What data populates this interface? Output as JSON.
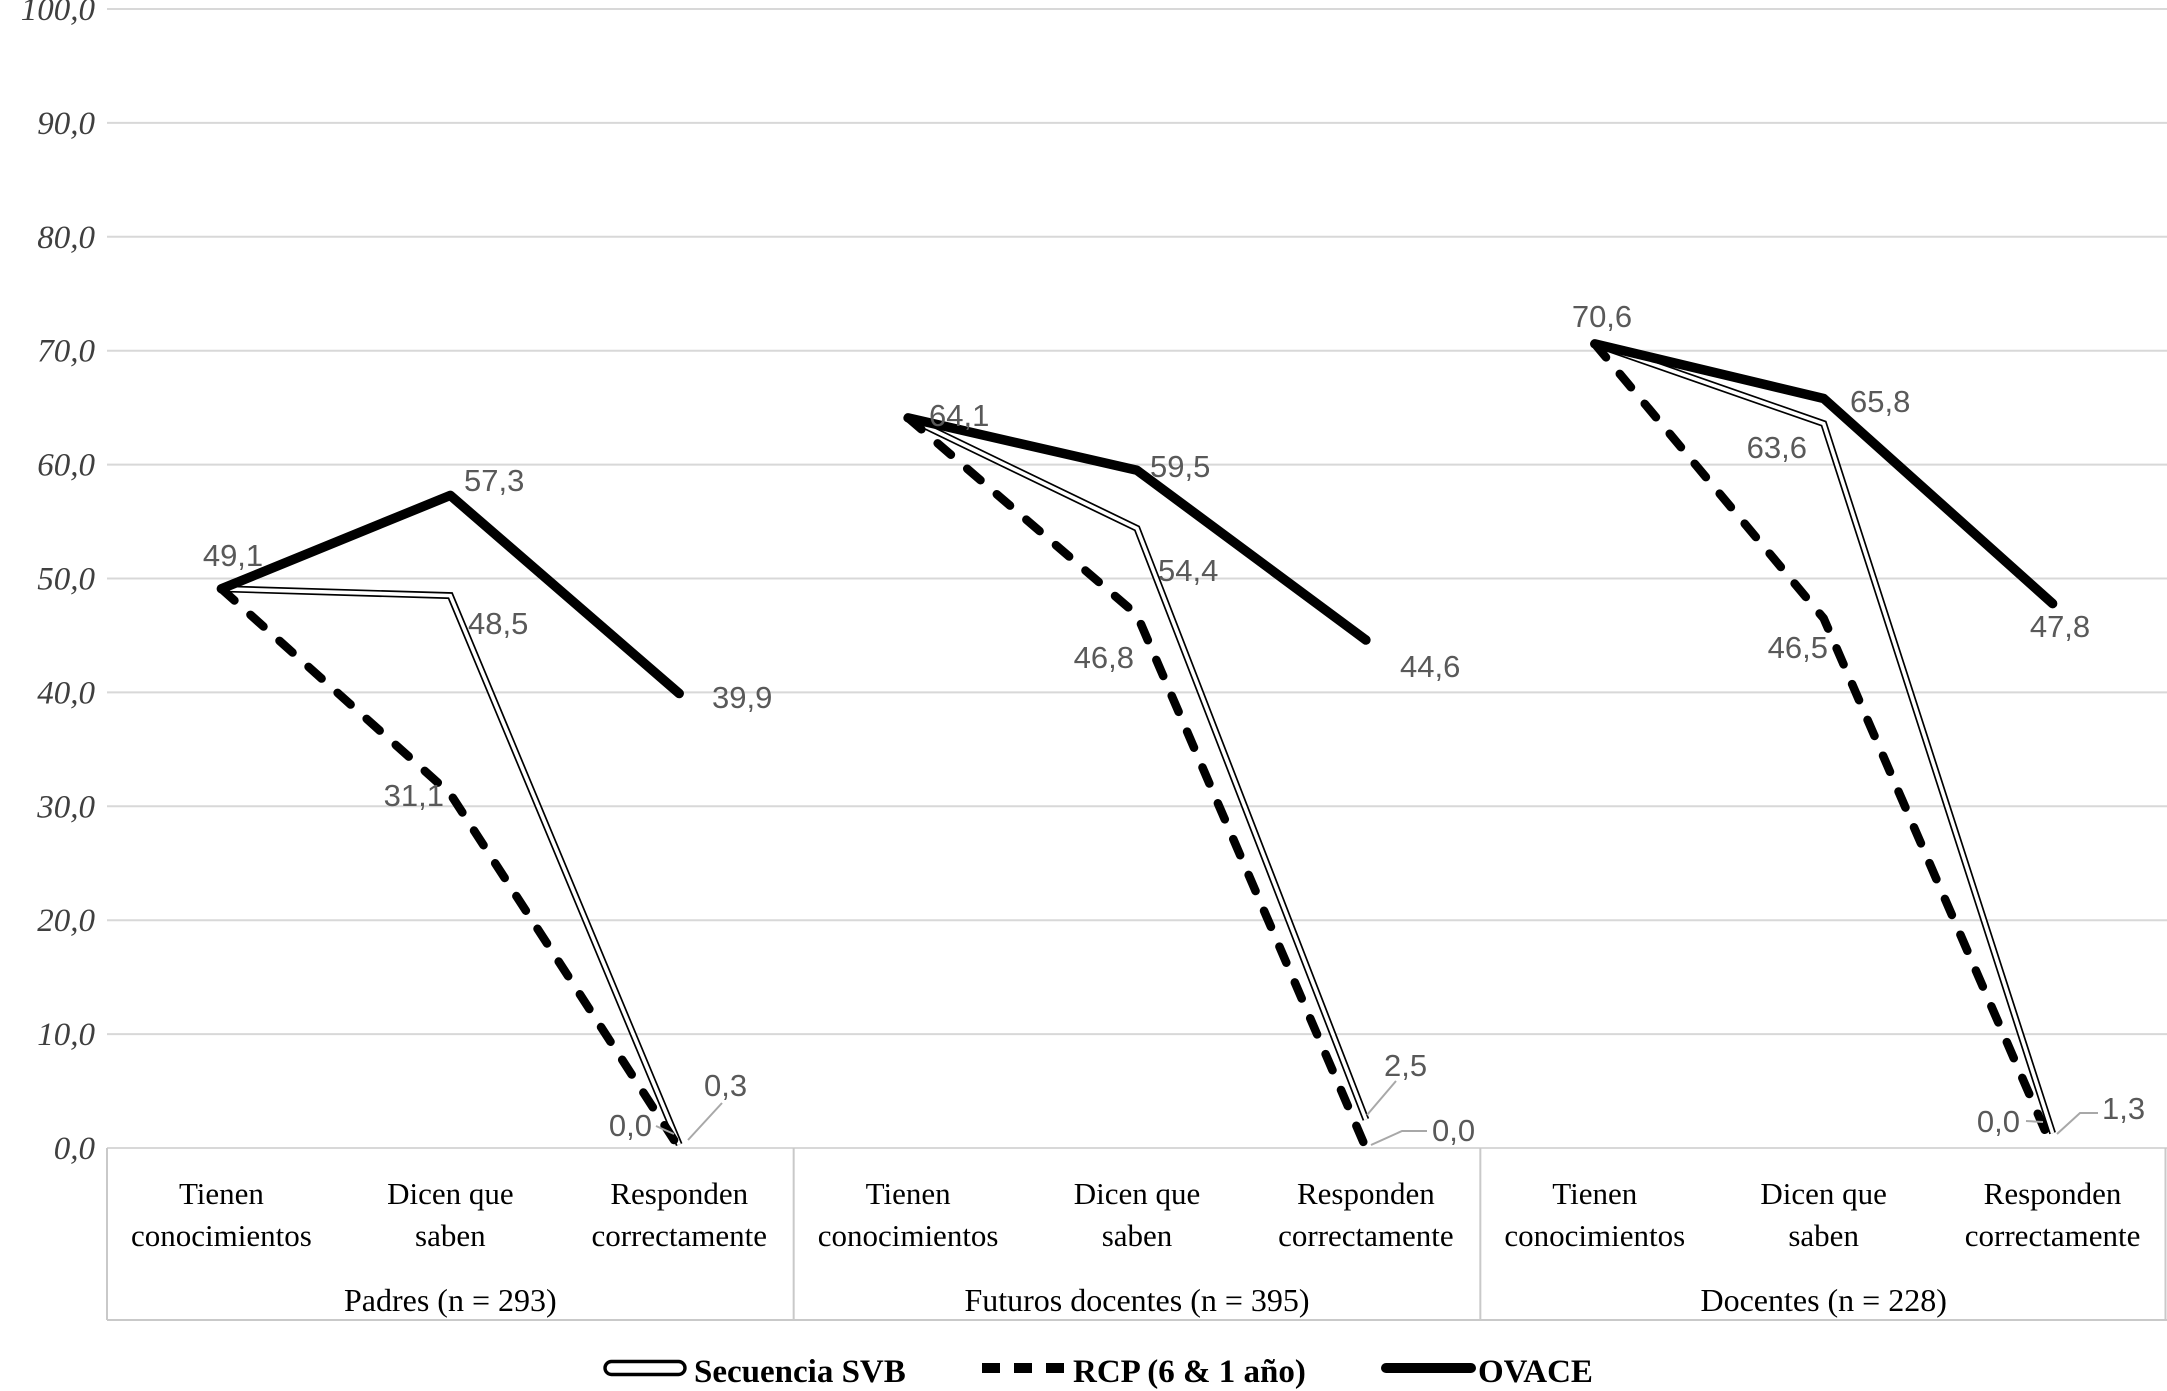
{
  "chart_data": {
    "type": "line",
    "title": "",
    "y_axis": {
      "min": 0,
      "max": 100,
      "step": 10,
      "tick_labels": [
        "0,0",
        "10,0",
        "20,0",
        "30,0",
        "40,0",
        "50,0",
        "60,0",
        "70,0",
        "80,0",
        "90,0",
        "100,0"
      ]
    },
    "grid": true,
    "categories": [
      [
        "Tienen",
        "conocimientos"
      ],
      [
        "Dicen que",
        "saben"
      ],
      [
        "Responden",
        "correctamente"
      ]
    ],
    "groups": [
      {
        "label": "Padres (n = 293)"
      },
      {
        "label": "Futuros docentes (n = 395)"
      },
      {
        "label": "Docentes (n = 228)"
      }
    ],
    "series": [
      {
        "name": "Secuencia SVB",
        "style": "double",
        "values": [
          [
            49.1,
            48.5,
            0.3
          ],
          [
            64.1,
            54.4,
            2.5
          ],
          [
            70.6,
            63.6,
            1.3
          ]
        ]
      },
      {
        "name": "RCP (6 & 1 año)",
        "style": "dashed",
        "values": [
          [
            49.1,
            31.1,
            0.0
          ],
          [
            64.1,
            46.8,
            0.0
          ],
          [
            70.6,
            46.5,
            0.0
          ]
        ]
      },
      {
        "name": "OVACE",
        "style": "thick",
        "values": [
          [
            49.1,
            57.3,
            39.9
          ],
          [
            64.1,
            59.5,
            44.6
          ],
          [
            70.6,
            65.8,
            47.8
          ]
        ]
      }
    ],
    "data_labels": [
      {
        "id": "g0-start",
        "text": "49,1"
      },
      {
        "id": "g0-ovace-1",
        "text": "57,3"
      },
      {
        "id": "g0-svb-1",
        "text": "48,5"
      },
      {
        "id": "g0-rcp-1",
        "text": "31,1"
      },
      {
        "id": "g0-ovace-2",
        "text": "39,9"
      },
      {
        "id": "g0-rcp-2",
        "text": "0,0"
      },
      {
        "id": "g0-svb-2",
        "text": "0,3"
      },
      {
        "id": "g1-start",
        "text": "64,1"
      },
      {
        "id": "g1-ovace-1",
        "text": "59,5"
      },
      {
        "id": "g1-svb-1",
        "text": "54,4"
      },
      {
        "id": "g1-rcp-1",
        "text": "46,8"
      },
      {
        "id": "g1-ovace-2",
        "text": "44,6"
      },
      {
        "id": "g1-svb-2",
        "text": "2,5"
      },
      {
        "id": "g1-rcp-2",
        "text": "0,0"
      },
      {
        "id": "g2-start",
        "text": "70,6"
      },
      {
        "id": "g2-ovace-1",
        "text": "65,8"
      },
      {
        "id": "g2-svb-1",
        "text": "63,6"
      },
      {
        "id": "g2-rcp-1",
        "text": "46,5"
      },
      {
        "id": "g2-ovace-2",
        "text": "47,8"
      },
      {
        "id": "g2-rcp-2",
        "text": "0,0"
      },
      {
        "id": "g2-svb-2",
        "text": "1,3"
      }
    ],
    "legend": {
      "position": "bottom",
      "entries": [
        "Secuencia SVB",
        "RCP (6 & 1 año)",
        "OVACE"
      ]
    },
    "colors": {
      "line": "#000000",
      "data_label": "#595959",
      "grid": "#d8d8d8",
      "axis_text": "#3f3f3f",
      "leader": "#a8a8a8",
      "background": "#ffffff"
    }
  }
}
